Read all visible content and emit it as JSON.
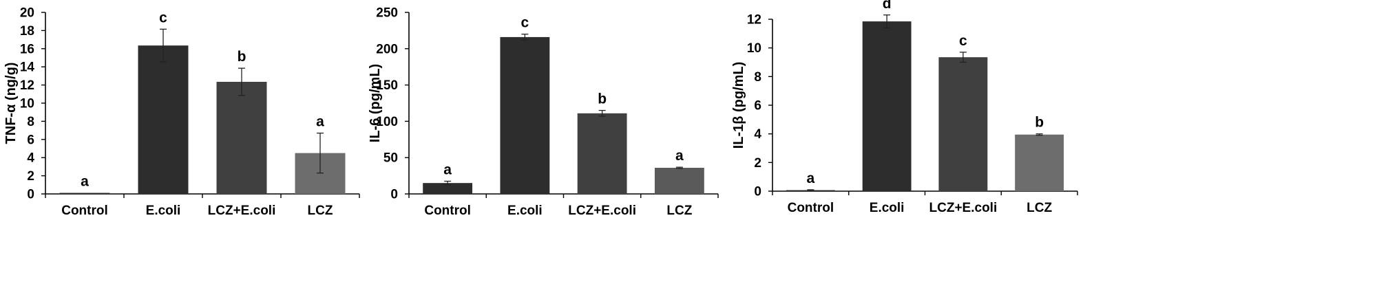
{
  "chart_data": [
    {
      "type": "bar",
      "ylabel": "TNF-α (ng/g)",
      "xlabel": "",
      "categories": [
        "Control",
        "E.coli",
        "LCZ+E.coli",
        "LCZ"
      ],
      "values": [
        0.05,
        16.35,
        12.35,
        4.5
      ],
      "errors": [
        0.0,
        1.8,
        1.5,
        2.2
      ],
      "significance_letters": [
        "a",
        "c",
        "b",
        "a"
      ],
      "bar_colors": [
        "#2d2d2d",
        "#2d2d2d",
        "#404040",
        "#6d6d6d"
      ],
      "ylim": [
        0,
        20
      ],
      "yticks": [
        0,
        2,
        4,
        6,
        8,
        10,
        12,
        14,
        16,
        18,
        20
      ],
      "grid": false
    },
    {
      "type": "bar",
      "ylabel": "IL-6 (pg/mL)",
      "xlabel": "",
      "categories": [
        "Control",
        "E.coli",
        "LCZ+E.coli",
        "LCZ"
      ],
      "values": [
        15,
        216,
        111,
        36
      ],
      "errors": [
        2.5,
        4,
        4,
        0.8
      ],
      "significance_letters": [
        "a",
        "c",
        "b",
        "a"
      ],
      "bar_colors": [
        "#2d2d2d",
        "#2d2d2d",
        "#404040",
        "#5a5a5a"
      ],
      "ylim": [
        0,
        250
      ],
      "yticks": [
        0,
        50,
        100,
        150,
        200,
        250
      ],
      "grid": false
    },
    {
      "type": "bar",
      "ylabel": "IL-1β (pg/mL)",
      "xlabel": "",
      "categories": [
        "Control",
        "E.coli",
        "LCZ+E.coli",
        "LCZ"
      ],
      "values": [
        0.05,
        11.85,
        9.35,
        3.95
      ],
      "errors": [
        0.05,
        0.45,
        0.35,
        0.05
      ],
      "significance_letters": [
        "a",
        "d",
        "c",
        "b"
      ],
      "bar_colors": [
        "#2d2d2d",
        "#2d2d2d",
        "#404040",
        "#6d6d6d"
      ],
      "ylim": [
        0,
        12
      ],
      "yticks": [
        0,
        2,
        4,
        6,
        8,
        10,
        12
      ],
      "grid": false
    }
  ]
}
